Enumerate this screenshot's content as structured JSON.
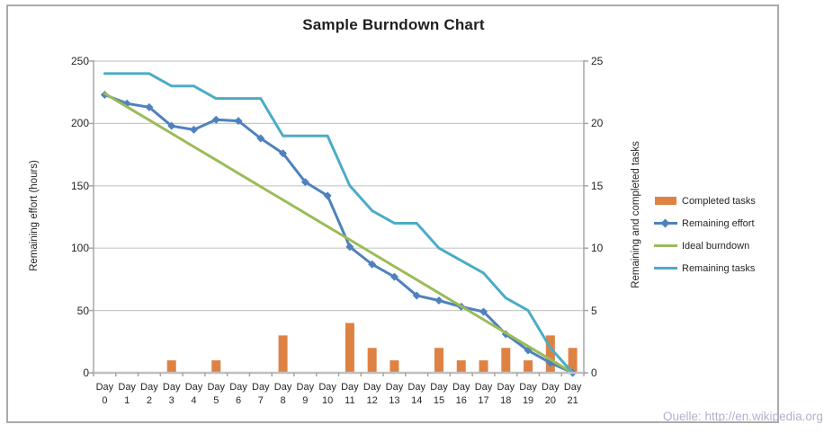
{
  "chart_data": {
    "type": "combo",
    "title": "Sample Burndown Chart",
    "x_tick_prefix": "Day",
    "x_tick_numbers": [
      "0",
      "1",
      "2",
      "3",
      "4",
      "5",
      "6",
      "7",
      "8",
      "9",
      "10",
      "11",
      "12",
      "13",
      "14",
      "15",
      "16",
      "17",
      "18",
      "19",
      "20",
      "21"
    ],
    "left_axis": {
      "title": "Remaining effort (hours)",
      "min": 0,
      "max": 250,
      "step": 50,
      "ticks": [
        "0",
        "50",
        "100",
        "150",
        "200",
        "250"
      ]
    },
    "right_axis": {
      "title": "Remaining and completed tasks",
      "min": 0,
      "max": 25,
      "step": 5,
      "ticks": [
        "0",
        "5",
        "10",
        "15",
        "20",
        "25"
      ]
    },
    "grid": true,
    "legend_position": "right",
    "series": [
      {
        "name": "Completed tasks",
        "kind": "bar",
        "axis": "right",
        "color": "#de8244",
        "values": [
          0,
          0,
          0,
          1,
          0,
          1,
          0,
          0,
          3,
          0,
          0,
          4,
          2,
          1,
          0,
          2,
          1,
          1,
          2,
          1,
          3,
          2
        ]
      },
      {
        "name": "Remaining effort",
        "kind": "line",
        "marker": "diamond",
        "axis": "left",
        "color": "#4f81bd",
        "values": [
          223,
          216,
          213,
          198,
          195,
          203,
          202,
          188,
          176,
          153,
          142,
          101,
          87,
          77,
          62,
          58,
          53,
          49,
          31,
          18,
          8,
          0
        ]
      },
      {
        "name": "Ideal burndown",
        "kind": "line",
        "axis": "left",
        "color": "#9bbb59",
        "values": [
          224,
          213.3,
          202.7,
          192,
          181.3,
          170.7,
          160,
          149.3,
          138.7,
          128,
          117.3,
          106.7,
          96,
          85.3,
          74.7,
          64,
          53.3,
          42.7,
          32,
          21.3,
          10.7,
          0
        ]
      },
      {
        "name": "Remaining tasks",
        "kind": "line",
        "axis": "right",
        "color": "#4bacc6",
        "values": [
          24,
          24,
          24,
          23,
          23,
          22,
          22,
          22,
          19,
          19,
          19,
          15,
          13,
          12,
          12,
          10,
          9,
          8,
          6,
          5,
          2,
          0
        ]
      }
    ],
    "style_colors": {
      "grid": "#c9c9c9",
      "axis": "#a6a6a6",
      "x_axis": "#c0c0c0",
      "text": "#262626"
    }
  },
  "source_note": {
    "text": "Quelle: http://en.wikipedia.org",
    "color": "#b5b1cd"
  }
}
